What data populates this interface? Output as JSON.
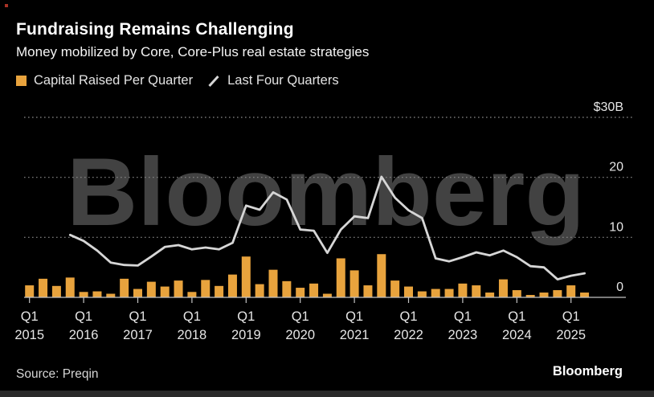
{
  "header": {
    "title": "Fundraising Remains Challenging",
    "subtitle": "Money mobilized by Core, Core-Plus real estate strategies"
  },
  "legend": {
    "items": [
      {
        "label": "Capital Raised Per Quarter",
        "marker": "orange-square"
      },
      {
        "label": "Last Four Quarters",
        "marker": "gray-slash"
      }
    ]
  },
  "watermark": "Bloomberg",
  "footer": {
    "source": "Source: Preqin",
    "brand": "Bloomberg"
  },
  "colors": {
    "background": "#000000",
    "bar": "#E8A33D",
    "line": "#D6D6D6",
    "watermark": "#424242",
    "gridline": "#8a8a8a",
    "axis_line": "#c4c4c4",
    "axis_text": "#e6e6e6",
    "title_text": "#ffffff"
  },
  "chart_data": {
    "type": "bar",
    "title": "Fundraising Remains Challenging",
    "subtitle": "Money mobilized by Core, Core-Plus real estate strategies",
    "unit": "$B",
    "source": "Preqin",
    "categories": [
      "Q1 2015",
      "Q2 2015",
      "Q3 2015",
      "Q4 2015",
      "Q1 2016",
      "Q2 2016",
      "Q3 2016",
      "Q4 2016",
      "Q1 2017",
      "Q2 2017",
      "Q3 2017",
      "Q4 2017",
      "Q1 2018",
      "Q2 2018",
      "Q3 2018",
      "Q4 2018",
      "Q1 2019",
      "Q2 2019",
      "Q3 2019",
      "Q4 2019",
      "Q1 2020",
      "Q2 2020",
      "Q3 2020",
      "Q4 2020",
      "Q1 2021",
      "Q2 2021",
      "Q3 2021",
      "Q4 2021",
      "Q1 2022",
      "Q2 2022",
      "Q3 2022",
      "Q4 2022",
      "Q1 2023",
      "Q2 2023",
      "Q3 2023",
      "Q4 2023",
      "Q1 2024",
      "Q2 2024",
      "Q3 2024",
      "Q4 2024",
      "Q1 2025",
      "Q2 2025"
    ],
    "series": [
      {
        "name": "Capital Raised Per Quarter",
        "type": "bar",
        "color": "#E8A33D",
        "values": [
          2.0,
          3.1,
          1.9,
          3.3,
          0.9,
          1.0,
          0.6,
          3.1,
          1.4,
          2.6,
          1.8,
          2.8,
          0.9,
          2.9,
          1.9,
          3.8,
          6.8,
          2.2,
          4.6,
          2.7,
          1.6,
          2.3,
          0.6,
          6.5,
          4.5,
          2.0,
          7.2,
          2.8,
          1.8,
          1.0,
          1.4,
          1.4,
          2.3,
          2.0,
          0.8,
          3.0,
          1.2,
          0.4,
          0.8,
          1.2,
          2.0,
          0.8
        ]
      },
      {
        "name": "Last Four Quarters",
        "type": "line",
        "color": "#D6D6D6",
        "start_index": 3,
        "values": [
          10.4,
          9.4,
          7.8,
          5.8,
          5.4,
          5.3,
          6.8,
          8.4,
          8.7,
          8.0,
          8.3,
          8.0,
          9.1,
          15.3,
          14.6,
          17.5,
          16.3,
          11.3,
          11.1,
          7.4,
          11.3,
          13.5,
          13.2,
          20.1,
          16.6,
          14.5,
          13.2,
          6.5,
          6.0,
          6.7,
          7.5,
          7.0,
          7.8,
          6.7,
          5.2,
          5.0,
          3.0,
          3.6,
          4.0
        ]
      }
    ],
    "y_axis": {
      "range": [
        0,
        30
      ],
      "gridlines": [
        10,
        20,
        30
      ],
      "ticks": [
        {
          "value": 30,
          "label": "$30B"
        },
        {
          "value": 20,
          "label": "20"
        },
        {
          "value": 10,
          "label": "10"
        },
        {
          "value": 0,
          "label": "0"
        }
      ]
    },
    "x_axis": {
      "tick_every": 4,
      "ticks": [
        {
          "quarter": "Q1",
          "year": "2015"
        },
        {
          "quarter": "Q1",
          "year": "2016"
        },
        {
          "quarter": "Q1",
          "year": "2017"
        },
        {
          "quarter": "Q1",
          "year": "2018"
        },
        {
          "quarter": "Q1",
          "year": "2019"
        },
        {
          "quarter": "Q1",
          "year": "2020"
        },
        {
          "quarter": "Q1",
          "year": "2021"
        },
        {
          "quarter": "Q1",
          "year": "2022"
        },
        {
          "quarter": "Q1",
          "year": "2023"
        },
        {
          "quarter": "Q1",
          "year": "2024"
        },
        {
          "quarter": "Q1",
          "year": "2025"
        }
      ],
      "legend_grid": false
    }
  }
}
